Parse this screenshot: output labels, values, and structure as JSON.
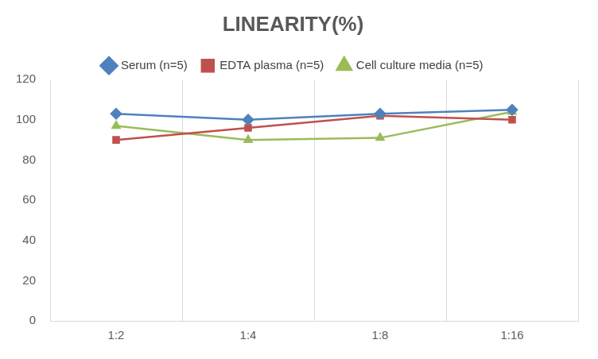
{
  "chart_data": {
    "type": "line",
    "title": "LINEARITY(%)",
    "categories": [
      "1:2",
      "1:4",
      "1:8",
      "1:16"
    ],
    "series": [
      {
        "name": "Serum (n=5)",
        "color": "#4f81bd",
        "marker": "diamond",
        "values": [
          103,
          100,
          103,
          105
        ]
      },
      {
        "name": "EDTA plasma (n=5)",
        "color": "#c0504d",
        "marker": "square",
        "values": [
          90,
          96,
          102,
          100
        ]
      },
      {
        "name": "Cell culture media (n=5)",
        "color": "#9bbb59",
        "marker": "triangle",
        "values": [
          97,
          90,
          91,
          104
        ]
      }
    ],
    "ylim": [
      0,
      120
    ],
    "yticks": [
      0,
      20,
      40,
      60,
      80,
      100,
      120
    ],
    "grid": true,
    "legend": "top"
  }
}
